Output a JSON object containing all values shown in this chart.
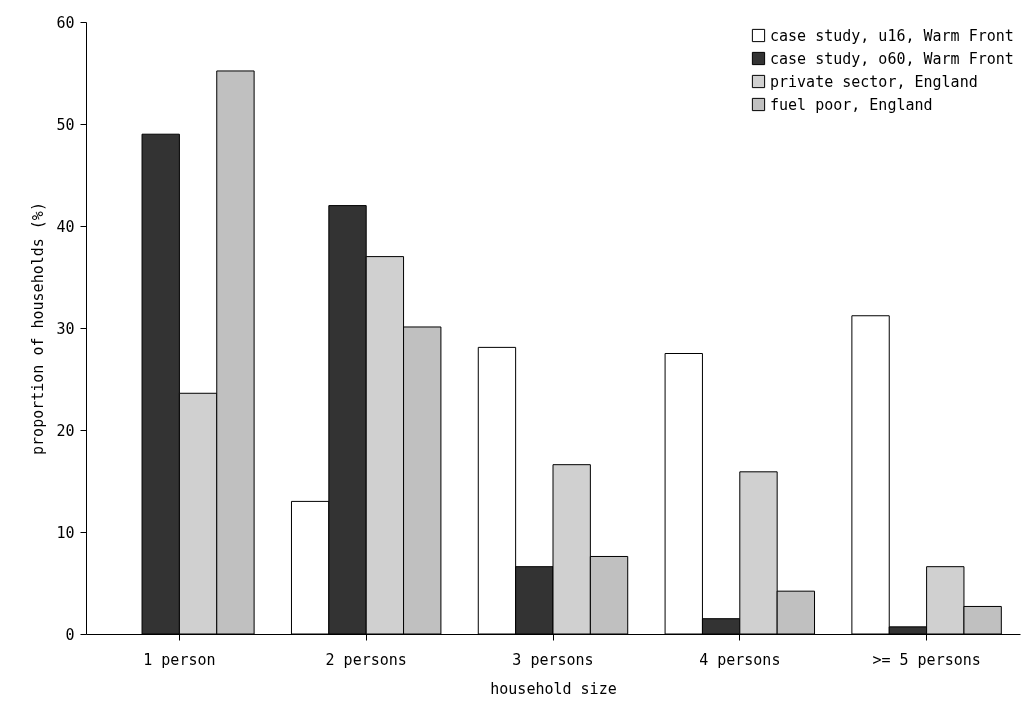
{
  "chart_data": {
    "type": "bar",
    "xlabel": "household size",
    "ylabel": "proportion of households (%)",
    "categories": [
      "1 person",
      "2 persons",
      "3 persons",
      "4 persons",
      ">= 5 persons"
    ],
    "series": [
      {
        "name": "case study, u16, Warm Front",
        "color": "#ffffff",
        "values": [
          null,
          13,
          28.1,
          27.5,
          31.2
        ]
      },
      {
        "name": "case study, o60, Warm Front",
        "color": "#333333",
        "values": [
          49,
          42,
          6.6,
          1.5,
          0.7
        ]
      },
      {
        "name": "private sector, England",
        "color": "#d0d0d0",
        "values": [
          23.6,
          37,
          16.6,
          15.9,
          6.6
        ]
      },
      {
        "name": "fuel poor, England",
        "color": "#c0c0c0",
        "values": [
          55.2,
          30.1,
          7.6,
          4.2,
          2.7
        ]
      }
    ],
    "ylim": [
      0,
      60
    ],
    "yticks": [
      0,
      10,
      20,
      30,
      40,
      50,
      60
    ],
    "grid": false,
    "legend": "top right"
  }
}
